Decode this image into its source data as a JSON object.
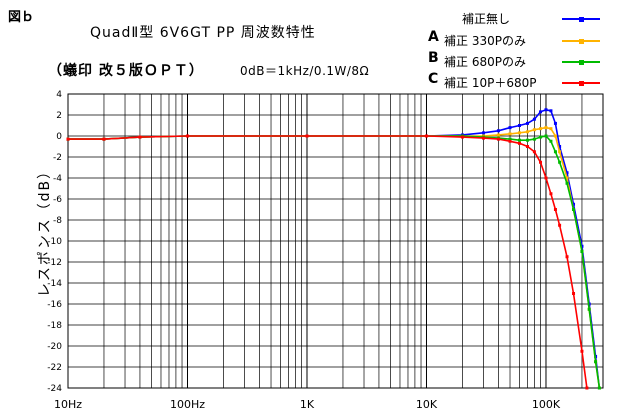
{
  "figure_label": "図ｂ",
  "title": "QuadⅡ型 6V6GT PP 周波数特性",
  "subtitle": "（蟻印 改５版ＯＰＴ）",
  "conditions": "0dB＝1kHz/0.1W/8Ω",
  "chart_data": {
    "type": "line",
    "ylabel": "レスポンス（dB）",
    "xscale": "log",
    "xlim": [
      10,
      300000
    ],
    "ylim": [
      -24,
      4
    ],
    "grid": true,
    "legend_position": "top-right",
    "x_tick_labels": [
      {
        "x": 10,
        "label": "10Hz"
      },
      {
        "x": 100,
        "label": "100Hz"
      },
      {
        "x": 1000,
        "label": "1K"
      },
      {
        "x": 10000,
        "label": "10K"
      },
      {
        "x": 100000,
        "label": "100K"
      }
    ],
    "y_ticks": [
      4,
      2,
      0,
      -2,
      -4,
      -6,
      -8,
      -10,
      -12,
      -14,
      -16,
      -18,
      -20,
      -22,
      -24
    ],
    "series": [
      {
        "name": "補正無し",
        "mark": "",
        "color": "#0000ff",
        "x": [
          10,
          20,
          40,
          100,
          1000,
          10000,
          20000,
          30000,
          40000,
          50000,
          60000,
          70000,
          80000,
          90000,
          100000,
          110000,
          120000,
          130000,
          150000,
          170000,
          200000,
          230000,
          260000,
          280000
        ],
        "y": [
          -0.3,
          -0.3,
          -0.1,
          0,
          0,
          0,
          0.1,
          0.3,
          0.5,
          0.8,
          1.0,
          1.2,
          1.6,
          2.3,
          2.5,
          2.4,
          1.2,
          -1.0,
          -3.5,
          -6.5,
          -10.5,
          -16.0,
          -21.0,
          -24.0
        ]
      },
      {
        "name": "補正 330Pのみ",
        "mark": "A",
        "color": "#ffb300",
        "x": [
          10,
          20,
          40,
          100,
          1000,
          10000,
          20000,
          30000,
          40000,
          50000,
          60000,
          70000,
          80000,
          90000,
          100000,
          110000,
          120000,
          130000,
          150000,
          170000,
          200000,
          230000,
          260000,
          280000
        ],
        "y": [
          -0.3,
          -0.3,
          -0.1,
          0,
          0,
          0,
          0,
          0,
          0.1,
          0.2,
          0.3,
          0.4,
          0.6,
          0.7,
          0.8,
          0.7,
          0,
          -1.5,
          -4.0,
          -7.0,
          -11.0,
          -16.5,
          -21.5,
          -24.0
        ]
      },
      {
        "name": "補正 680Pのみ",
        "mark": "B",
        "color": "#00bb00",
        "x": [
          10,
          20,
          40,
          100,
          1000,
          10000,
          20000,
          30000,
          40000,
          50000,
          60000,
          70000,
          80000,
          90000,
          100000,
          110000,
          120000,
          130000,
          150000,
          170000,
          200000,
          230000,
          260000,
          280000
        ],
        "y": [
          -0.3,
          -0.3,
          -0.1,
          0,
          0,
          0,
          0,
          -0.1,
          -0.2,
          -0.3,
          -0.4,
          -0.4,
          -0.3,
          -0.1,
          0,
          -0.5,
          -1.5,
          -2.5,
          -4.5,
          -7.0,
          -11.0,
          -16.5,
          -21.5,
          -24.0
        ]
      },
      {
        "name": "補正 10P＋680P",
        "mark": "C",
        "color": "#ff0000",
        "x": [
          10,
          20,
          40,
          100,
          1000,
          10000,
          20000,
          30000,
          40000,
          50000,
          60000,
          70000,
          80000,
          90000,
          100000,
          110000,
          120000,
          130000,
          150000,
          170000,
          200000,
          220000
        ],
        "y": [
          -0.3,
          -0.3,
          -0.1,
          0,
          0,
          0,
          -0.1,
          -0.2,
          -0.3,
          -0.5,
          -0.7,
          -1.0,
          -1.5,
          -2.5,
          -4.0,
          -5.5,
          -7.0,
          -8.5,
          -11.5,
          -15.0,
          -20.5,
          -24.0
        ]
      }
    ]
  }
}
